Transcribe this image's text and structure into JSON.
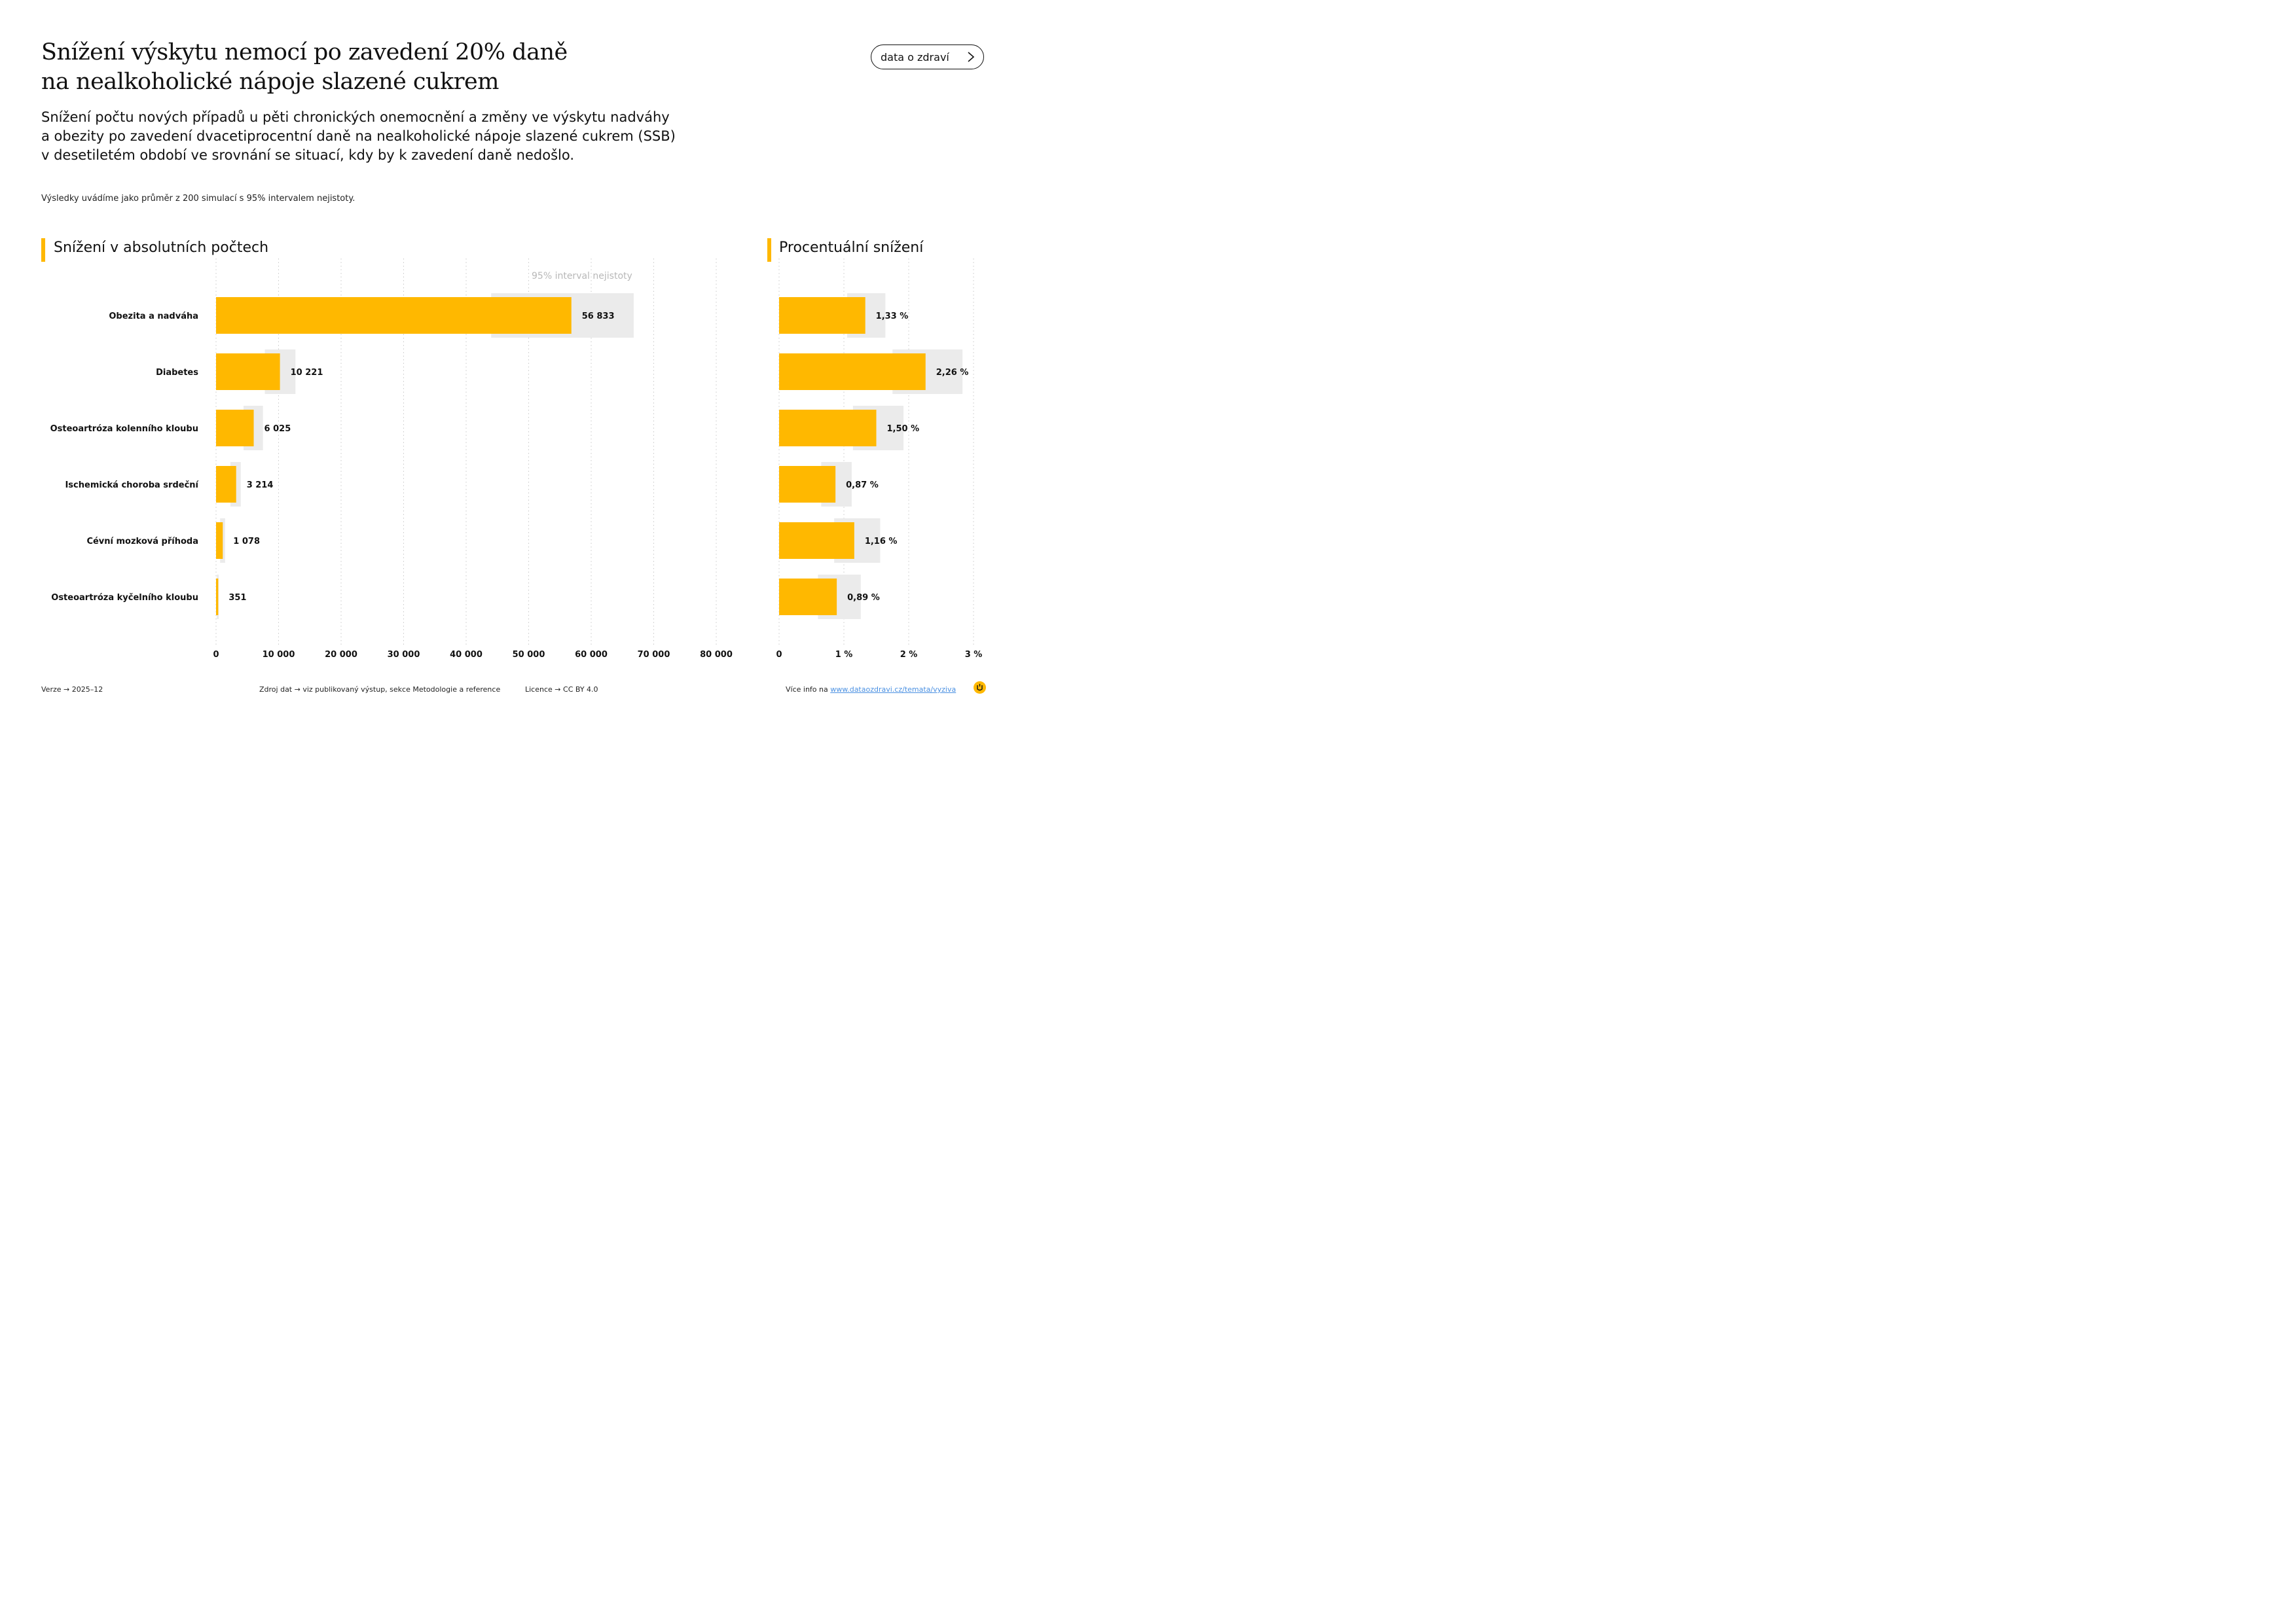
{
  "header": {
    "title_line1": "Snížení výskytu nemocí po zavedení 20% daně",
    "title_line2": "na nealkoholické nápoje slazené cukrem",
    "subtitle_line1": "Snížení počtu nových případů u pěti chronických onemocnění a změny ve výskytu nadváhy",
    "subtitle_line2": "a obezity po zavedení dvacetiprocentní daně na nealkoholické nápoje slazené cukrem (SSB)",
    "subtitle_line3": "v desetiletém období ve srovnání se situací, kdy by k zavedení daně nedošlo.",
    "note": "Výsledky uvádíme jako průměr z 200 simulací s 95% intervalem nejistoty.",
    "button_label": "data o zdraví"
  },
  "colors": {
    "bar": "#FFB800",
    "interval": "#EBEBEB",
    "grid": "#C8C8C8",
    "accent": "#FFB800"
  },
  "chart_data": [
    {
      "type": "bar",
      "orientation": "horizontal",
      "title": "Snížení v absolutních počtech",
      "categories": [
        "Obezita a nadváha",
        "Diabetes",
        "Osteoartróza kolenního kloubu",
        "Ischemická choroba srdeční",
        "Cévní mozková příhoda",
        "Osteoartróza kyčelního kloubu"
      ],
      "values": [
        56833,
        10221,
        6025,
        3214,
        1078,
        351
      ],
      "value_labels": [
        "56 833",
        "10 221",
        "6 025",
        "3 214",
        "1 078",
        "351"
      ],
      "ci_low": [
        44000,
        7800,
        4400,
        2300,
        650,
        120
      ],
      "ci_high": [
        66800,
        12700,
        7500,
        3950,
        1450,
        420
      ],
      "ci_label": "95% interval nejistoty",
      "xlim": [
        0,
        80000
      ],
      "ticks": [
        0,
        10000,
        20000,
        30000,
        40000,
        50000,
        60000,
        70000,
        80000
      ],
      "tick_labels": [
        "0",
        "10 000",
        "20 000",
        "30 000",
        "40 000",
        "50 000",
        "60 000",
        "70 000",
        "80 000"
      ],
      "grid": true
    },
    {
      "type": "bar",
      "orientation": "horizontal",
      "title": "Procentuální snížení",
      "categories": [
        "Obezita a nadváha",
        "Diabetes",
        "Osteoartróza kolenního kloubu",
        "Ischemická choroba srdeční",
        "Cévní mozková příhoda",
        "Osteoartróza kyčelního kloubu"
      ],
      "values": [
        1.33,
        2.26,
        1.5,
        0.87,
        1.16,
        0.89
      ],
      "value_labels": [
        "1,33 %",
        "2,26 %",
        "1,50 %",
        "0,87 %",
        "1,16 %",
        "0,89 %"
      ],
      "ci_low": [
        1.05,
        1.75,
        1.14,
        0.65,
        0.85,
        0.6
      ],
      "ci_high": [
        1.64,
        2.83,
        1.92,
        1.12,
        1.56,
        1.26
      ],
      "xlim": [
        0,
        3
      ],
      "ticks": [
        0,
        1,
        2,
        3
      ],
      "tick_labels": [
        "0",
        "1 %",
        "2 %",
        "3 %"
      ],
      "grid": true
    }
  ],
  "footer": {
    "version_label": "Verze",
    "version_value": "2025–12",
    "source_label": "Zdroj dat",
    "source_value": "viz publikovaný výstup, sekce Metodologie a reference",
    "license_label": "Licence",
    "license_value": "CC BY 4.0",
    "more_label": "Více info na",
    "more_link": "www.dataozdravi.cz/temata/vyziva",
    "arrow": "→"
  }
}
